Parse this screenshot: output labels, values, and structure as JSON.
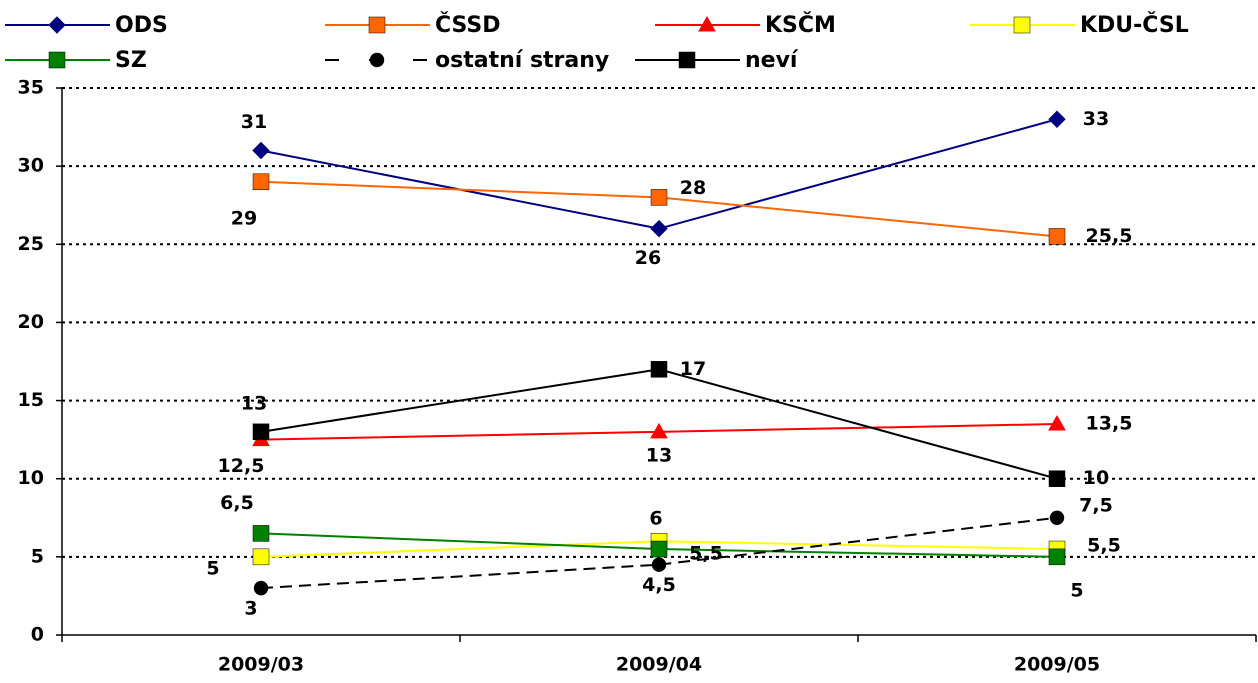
{
  "chart_data": {
    "type": "line",
    "categories": [
      "2009/03",
      "2009/04",
      "2009/05"
    ],
    "series": [
      {
        "name": "ODS",
        "color": "#000080",
        "marker": "diamond",
        "values": [
          31,
          26,
          33
        ],
        "value_labels": [
          "31",
          "26",
          "33"
        ]
      },
      {
        "name": "ČSSD",
        "color": "#ff6600",
        "marker": "square",
        "values": [
          29,
          28,
          25.5
        ],
        "value_labels": [
          "29",
          "28",
          "25,5"
        ]
      },
      {
        "name": "KSČM",
        "color": "#ff0000",
        "marker": "triangle",
        "values": [
          12.5,
          13,
          13.5
        ],
        "value_labels": [
          "12,5",
          "13",
          "13,5"
        ]
      },
      {
        "name": "KDU-ČSL",
        "color": "#ffff00",
        "marker": "square",
        "values": [
          5,
          6,
          5.5
        ],
        "value_labels": [
          "5",
          "6",
          "5,5"
        ]
      },
      {
        "name": "SZ",
        "color": "#008000",
        "marker": "square",
        "values": [
          6.5,
          5.5,
          5
        ],
        "value_labels": [
          "6,5",
          "5,5",
          "5"
        ]
      },
      {
        "name": "ostatní strany",
        "color": "#000000",
        "marker": "circle",
        "dashed": true,
        "values": [
          3,
          4.5,
          7.5
        ],
        "value_labels": [
          "3",
          "4,5",
          "7,5"
        ]
      },
      {
        "name": "neví",
        "color": "#000000",
        "marker": "square",
        "values": [
          13,
          17,
          10
        ],
        "value_labels": [
          "13",
          "17",
          "10"
        ]
      }
    ],
    "ylim": [
      0,
      35
    ],
    "yticks": [
      0,
      5,
      10,
      15,
      20,
      25,
      30,
      35
    ],
    "grid": true
  }
}
